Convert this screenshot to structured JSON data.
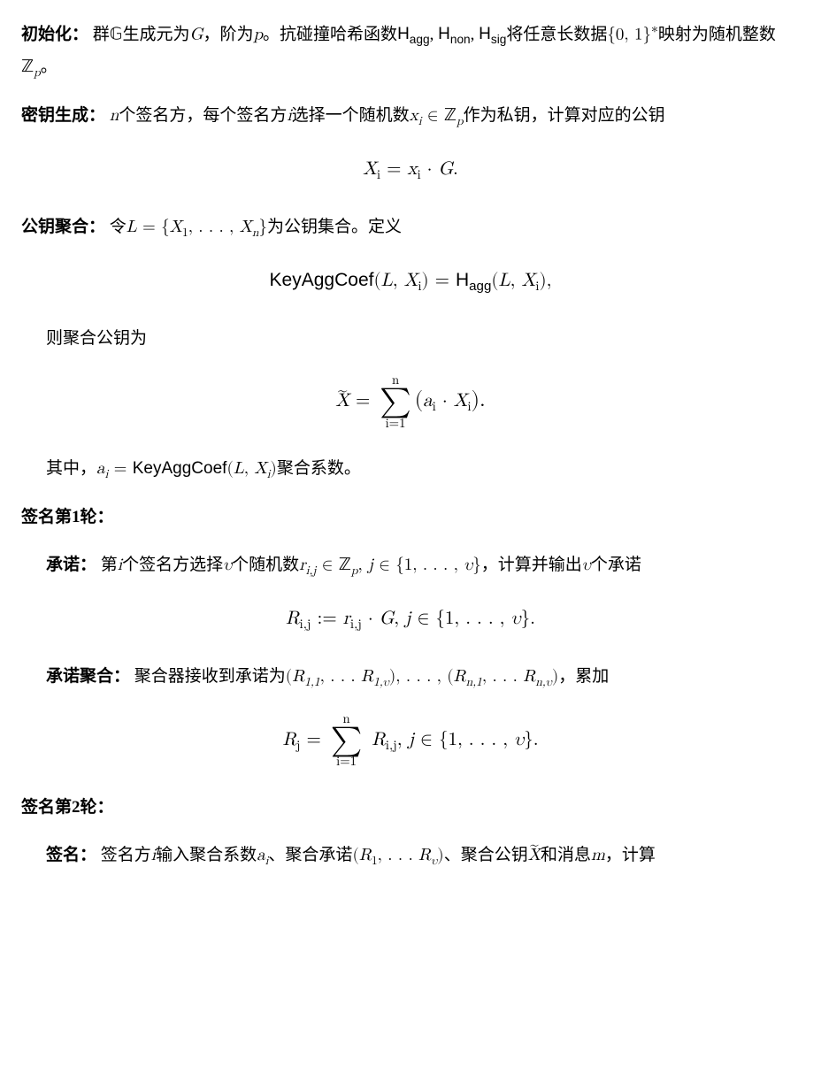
{
  "p1": {
    "label": "初始化：",
    "t1": "群",
    "G_bb": "𝔾",
    "t2": "生成元为",
    "G": "G",
    "t3": "，阶为",
    "p": "p",
    "t4": "。抗碰撞哈希函数",
    "Hagg": "H",
    "agg": "agg",
    "comma1": ", ",
    "Hnon": "H",
    "non": "non",
    "comma2": ", ",
    "Hsig": "H",
    "sig": "sig",
    "t5": "将任意长数据",
    "set01": "{0, 1}",
    "star": "∗",
    "t6": "映射为随机整数",
    "Zp": "ℤ",
    "Zp_sub": "p",
    "t7": "。"
  },
  "p2": {
    "label": "密钥生成：",
    "t1": "",
    "n": "n",
    "t2": "个签名方，每个签名方",
    "i": "i",
    "t3": "选择一个随机数",
    "xi": "x",
    "xi_sub": "i",
    "in": " ∈ ",
    "Zp": "ℤ",
    "Zp_sub": "p",
    "t4": "作为私钥，计算对应的公钥"
  },
  "eq1": "X_i = x_i · G.",
  "eq1_parts": {
    "X": "X",
    "i1": "i",
    "eq": " = ",
    "x": "x",
    "i2": "i",
    "dot": " · ",
    "G": "G",
    "period": "."
  },
  "p3": {
    "label": "公钥聚合：",
    "t1": "令",
    "L": "L",
    "eq": " = {",
    "X1": "X",
    "X1sub": "1",
    "dots": ", . . . , ",
    "Xn": "X",
    "Xnsub": "n",
    "close": "}",
    "t2": "为公钥集合。定义"
  },
  "eq2": {
    "KeyAggCoef": "KeyAggCoef",
    "open": "(",
    "L": "L",
    "c": ", ",
    "X": "X",
    "i": "i",
    "close": ") = ",
    "H": "H",
    "agg": "agg",
    "open2": "(",
    "L2": "L",
    "c2": ", ",
    "X2": "X",
    "i2": "i",
    "close2": "),"
  },
  "p4": {
    "t": "则聚合公钥为"
  },
  "eq3": {
    "Xtilde": "X",
    "tilde": "~",
    "eq": " = ",
    "top": "n",
    "bot": "i=1",
    "open": "(",
    "a": "a",
    "ai": "i",
    "dot": " · ",
    "X": "X",
    "Xi": "i",
    "close": ")."
  },
  "p5": {
    "t1": "其中，",
    "a": "a",
    "ai": "i",
    "eq": " = ",
    "KeyAggCoef": "KeyAggCoef",
    "open": "(",
    "L": "L",
    "c": ", ",
    "X": "X",
    "Xi": "i",
    "close": ")",
    "t2": "聚合系数。"
  },
  "h1": "签名第1轮：",
  "p6": {
    "label": "承诺：",
    "t1": "第",
    "i": "i",
    "t2": "个签名方选择",
    "v": "υ",
    "t3": "个随机数",
    "r": "r",
    "rsub": "i,j",
    "in": " ∈ ",
    "Zp": "ℤ",
    "Zpsub": "p",
    "c": ", ",
    "j": "j",
    "in2": " ∈ {",
    "one": "1",
    "dots": ", . . . , ",
    "v2": "υ",
    "close": "}",
    "t4": "，计算并输出",
    "v3": "υ",
    "t5": "个承诺"
  },
  "eq4": {
    "R": "R",
    "Rsub": "i,j",
    "def": " := ",
    "r": "r",
    "rsub": "i,j",
    "dot": " · ",
    "G": "G",
    "c": ", ",
    "j": "j",
    "in": " ∈ {",
    "one": "1",
    "dots": ", . . . , ",
    "v": "υ",
    "close": "}."
  },
  "p7": {
    "label": "承诺聚合：",
    "t1": "聚合器接收到承诺为",
    "open1": "(",
    "R11": "R",
    "R11sub": "1,1",
    "dots1": ", . . . ",
    "R1v": "R",
    "R1vsub": "1,υ",
    "close1": "), . . . , (",
    "Rn1": "R",
    "Rn1sub": "n,1",
    "dots2": ", . . . ",
    "Rnv": "R",
    "Rnvsub": "n,υ",
    "close2": ")",
    "t2": "，累加"
  },
  "eq5": {
    "R": "R",
    "Rj": "j",
    "eq": " = ",
    "top": "n",
    "bot": "i=1",
    "Ri": "R",
    "Risub": "i,j",
    "c": ", ",
    "j": "j",
    "in": " ∈ {",
    "one": "1",
    "dots": ", . . . , ",
    "v": "υ",
    "close": "}."
  },
  "h2": "签名第2轮：",
  "p8": {
    "label": "签名：",
    "t1": "签名方",
    "i": "i",
    "t2": "输入聚合系数",
    "a": "a",
    "ai": "i",
    "t3": "、聚合承诺",
    "open": "(",
    "R1": "R",
    "R1sub": "1",
    "dots": ", . . . ",
    "Rv": "R",
    "Rvsub": "υ",
    "close": ")",
    "t4": "、聚合公钥",
    "Xtilde": "X",
    "tilde": "~",
    "t5": "和消息",
    "m": "m",
    "t6": "，计算"
  }
}
